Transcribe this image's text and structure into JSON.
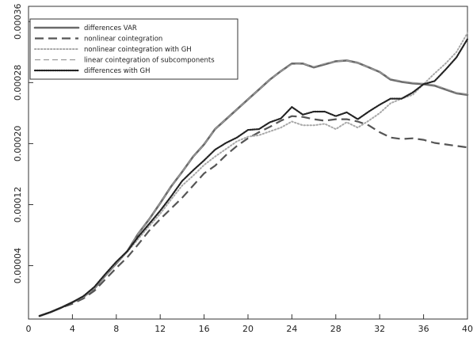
{
  "chart_data": {
    "type": "line",
    "title": "",
    "xlabel": "",
    "ylabel": "",
    "xlim": [
      0,
      40
    ],
    "ylim": [
      -3e-05,
      0.00038
    ],
    "x_ticks": [
      0,
      4,
      8,
      12,
      16,
      20,
      24,
      28,
      32,
      36,
      40
    ],
    "x_tick_labels": [
      "0",
      "4",
      "8",
      "12",
      "16",
      "20",
      "24",
      "28",
      "32",
      "36",
      "40"
    ],
    "y_ticks": [
      4e-05,
      0.00012,
      0.0002,
      0.00028,
      0.00036
    ],
    "y_tick_labels": [
      "0.00004",
      "0.00012",
      "0.00020",
      "0.00028",
      "0.00036"
    ],
    "grid": false,
    "legend_position": "top-left",
    "series": [
      {
        "name": "differences VAR",
        "style": "solid-thick",
        "color": "#6a6a6a",
        "x": [
          1,
          2,
          3,
          4,
          5,
          6,
          7,
          8,
          9,
          10,
          11,
          12,
          13,
          14,
          15,
          16,
          17,
          18,
          19,
          20,
          21,
          22,
          23,
          24,
          25,
          26,
          27,
          28,
          29,
          30,
          31,
          32,
          33,
          34,
          35,
          36,
          37,
          38,
          39,
          40
        ],
        "values": [
          -2.6e-05,
          -2.1e-05,
          -1.5e-05,
          -8e-06,
          -1e-06,
          1e-05,
          2.7e-05,
          4.3e-05,
          5.9e-05,
          8.2e-05,
          0.000101,
          0.000122,
          0.000144,
          0.000163,
          0.000183,
          0.000199,
          0.000219,
          0.000232,
          0.000245,
          0.000258,
          0.000271,
          0.000284,
          0.000295,
          0.000305,
          0.000305,
          0.0003,
          0.000304,
          0.000308,
          0.000309,
          0.000306,
          0.0003,
          0.000294,
          0.000284,
          0.000281,
          0.000279,
          0.000278,
          0.000276,
          0.000271,
          0.000266,
          0.000264
        ]
      },
      {
        "name": "nonlinear cointegration",
        "style": "long-dash",
        "color": "#555555",
        "x": [
          1,
          2,
          3,
          4,
          5,
          6,
          7,
          8,
          9,
          10,
          11,
          12,
          13,
          14,
          15,
          16,
          17,
          18,
          19,
          20,
          21,
          22,
          23,
          24,
          25,
          26,
          27,
          28,
          29,
          30,
          31,
          32,
          33,
          34,
          35,
          36,
          37,
          38,
          39,
          40
        ],
        "values": [
          -2.6e-05,
          -2.1e-05,
          -1.5e-05,
          -1e-05,
          -3e-06,
          7e-06,
          2.2e-05,
          3.7e-05,
          5.1e-05,
          6.8e-05,
          8.6e-05,
          0.000101,
          0.000115,
          0.000129,
          0.000145,
          0.000161,
          0.000171,
          0.000185,
          0.000197,
          0.000207,
          0.000215,
          0.000222,
          0.00023,
          0.000236,
          0.000235,
          0.000232,
          0.00023,
          0.000232,
          0.000232,
          0.000229,
          0.000224,
          0.000215,
          0.000208,
          0.000206,
          0.000207,
          0.000205,
          0.000201,
          0.000199,
          0.000197,
          0.000195
        ]
      },
      {
        "name": "nonlinear cointegration with GH",
        "style": "dotted-light",
        "color": "#a8a8a8",
        "x": [
          1,
          2,
          3,
          4,
          5,
          6,
          7,
          8,
          9,
          10,
          11,
          12,
          13,
          14,
          15,
          16,
          17,
          18,
          19,
          20,
          21,
          22,
          23,
          24,
          25,
          26,
          27,
          28,
          29,
          30,
          31,
          32,
          33,
          34,
          35,
          36,
          37,
          38,
          39,
          40
        ],
        "values": [
          -2.6e-05,
          -2.1e-05,
          -1.5e-05,
          -8e-06,
          -1e-06,
          1.1e-05,
          2.8e-05,
          4.4e-05,
          5.8e-05,
          7.5e-05,
          9.2e-05,
          0.000108,
          0.000127,
          0.000145,
          0.000158,
          0.000172,
          0.000183,
          0.000193,
          0.000203,
          0.000209,
          0.000211,
          0.000216,
          0.000221,
          0.000229,
          0.000224,
          0.000224,
          0.000226,
          0.000219,
          0.000228,
          0.000221,
          0.00023,
          0.00024,
          0.000253,
          0.000259,
          0.000264,
          0.000278,
          0.000292,
          0.000305,
          0.00032,
          0.000345
        ]
      },
      {
        "name": "linear cointegration of subcomponents",
        "style": "medium-dash",
        "color": "#9a9a9a",
        "x": [
          1,
          2,
          3,
          4,
          5,
          6,
          7,
          8,
          9,
          10,
          11,
          12,
          13,
          14,
          15,
          16,
          17,
          18,
          19,
          20,
          21,
          22,
          23,
          24,
          25,
          26,
          27,
          28,
          29,
          30,
          31,
          32,
          33,
          34,
          35,
          36,
          37,
          38,
          39,
          40
        ],
        "values": [
          -2.6e-05,
          -2.1e-05,
          -1.5e-05,
          -8e-06,
          -1e-06,
          1e-05,
          2.7e-05,
          4.3e-05,
          5.9e-05,
          8.2e-05,
          0.000101,
          0.000122,
          0.000144,
          0.000163,
          0.000183,
          0.000199,
          0.000219,
          0.000232,
          0.000245,
          0.000258,
          0.000271,
          0.000284,
          0.000295,
          0.000304,
          0.000305,
          0.000301,
          0.000305,
          0.000308,
          0.000309,
          0.000306,
          0.0003,
          0.000294,
          0.000285,
          0.000282,
          0.00028,
          0.000279,
          0.000277,
          0.000272,
          0.000267,
          0.000265
        ]
      },
      {
        "name": "differences with GH",
        "style": "dotted-dark",
        "color": "#222222",
        "x": [
          1,
          2,
          3,
          4,
          5,
          6,
          7,
          8,
          9,
          10,
          11,
          12,
          13,
          14,
          15,
          16,
          17,
          18,
          19,
          20,
          21,
          22,
          23,
          24,
          25,
          26,
          27,
          28,
          29,
          30,
          31,
          32,
          33,
          34,
          35,
          36,
          37,
          38,
          39,
          40
        ],
        "values": [
          -2.6e-05,
          -2.1e-05,
          -1.5e-05,
          -8e-06,
          0.0,
          1.2e-05,
          2.9e-05,
          4.5e-05,
          5.9e-05,
          7.8e-05,
          9.5e-05,
          0.000112,
          0.000131,
          0.000151,
          0.000165,
          0.000178,
          0.000192,
          0.000201,
          0.000208,
          0.000218,
          0.000219,
          0.000228,
          0.000233,
          0.000248,
          0.000238,
          0.000242,
          0.000242,
          0.000236,
          0.000241,
          0.000232,
          0.000242,
          0.000251,
          0.000259,
          0.000259,
          0.000267,
          0.000278,
          0.000282,
          0.000297,
          0.000313,
          0.000337
        ]
      }
    ]
  }
}
